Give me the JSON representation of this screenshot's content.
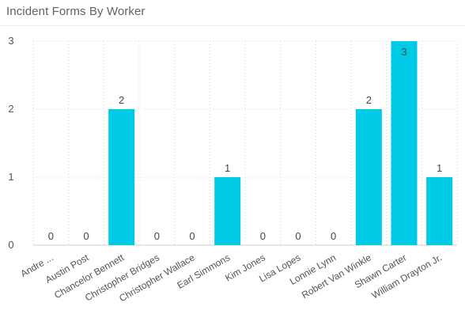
{
  "title": "Incident Forms By Worker",
  "colors": {
    "bar": "#00cbe6",
    "grid": "#d4d4d4",
    "axis": "#cfcfcf"
  },
  "chart_data": {
    "type": "bar",
    "title": "Incident Forms By Worker",
    "xlabel": "",
    "ylabel": "",
    "ylim": [
      0,
      3
    ],
    "yticks": [
      0,
      1,
      2,
      3
    ],
    "grid": true,
    "categories": [
      "Andre ...",
      "Austin Post",
      "Chancelor Bennett",
      "Christopher Bridges",
      "Christopher Wallace",
      "Earl Simmons",
      "Kim Jones",
      "Lisa Lopes",
      "Lonnie Lynn",
      "Robert Van Winkle",
      "Shawn Carter",
      "William Drayton Jr."
    ],
    "values": [
      0,
      0,
      2,
      0,
      0,
      1,
      0,
      0,
      0,
      2,
      3,
      1
    ]
  }
}
